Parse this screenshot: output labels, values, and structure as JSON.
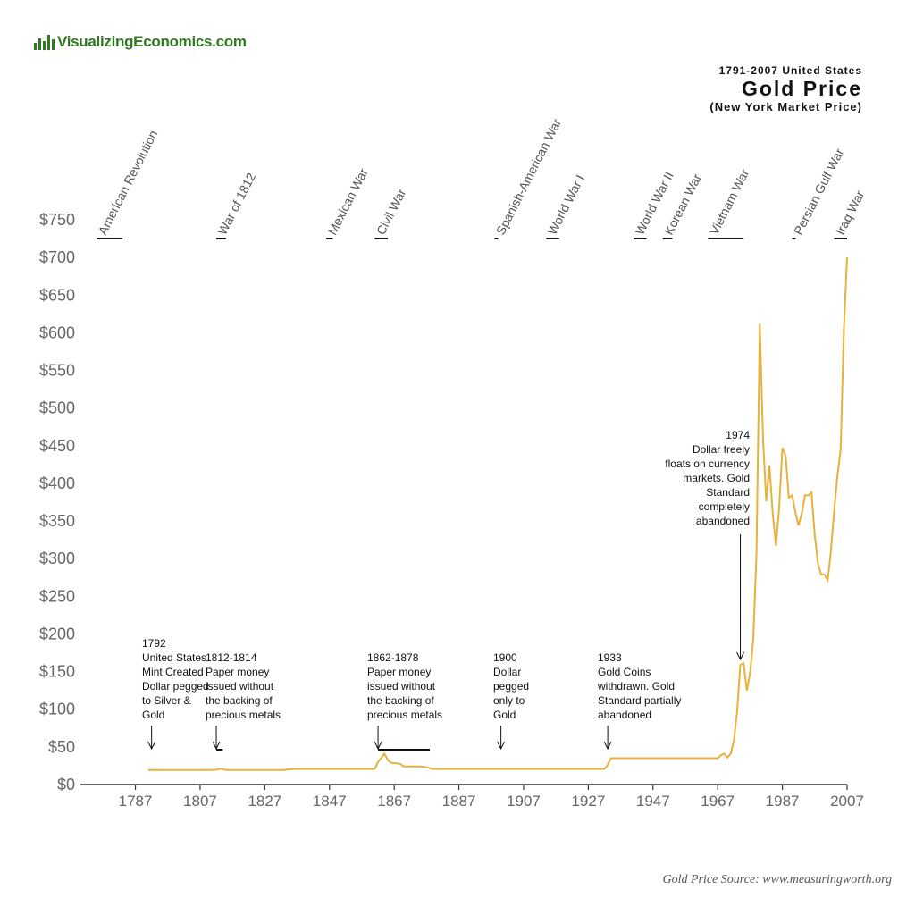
{
  "logo": {
    "text": "VisualizingEconomics.com"
  },
  "title": {
    "top": "1791-2007 United States",
    "main": "Gold Price",
    "sub": "(New York Market Price)"
  },
  "source": "Gold Price Source: www.measuringworth.org",
  "colors": {
    "line": "#e8b13a",
    "axis": "#333333",
    "text": "#666666",
    "logo": "#2f7a1f"
  },
  "chart_data": {
    "type": "line",
    "title": "Gold Price",
    "xlabel": "",
    "ylabel": "",
    "xlim": [
      1770,
      2007
    ],
    "ylim": [
      0,
      750
    ],
    "y_ticks": [
      0,
      50,
      100,
      150,
      200,
      250,
      300,
      350,
      400,
      450,
      500,
      550,
      600,
      650,
      700,
      750
    ],
    "y_tick_labels": [
      "$0",
      "$50",
      "$100",
      "$150",
      "$200",
      "$250",
      "$300",
      "$350",
      "$400",
      "$450",
      "$500",
      "$550",
      "$600",
      "$650",
      "$700",
      "$750"
    ],
    "x_ticks": [
      1787,
      1807,
      1827,
      1847,
      1867,
      1887,
      1907,
      1927,
      1947,
      1967,
      1987,
      2007
    ],
    "x_tick_labels": [
      "1787",
      "1807",
      "1827",
      "1847",
      "1867",
      "1887",
      "1907",
      "1927",
      "1947",
      "1967",
      "1987",
      "2007"
    ],
    "grid": false,
    "series": [
      {
        "points": [
          [
            1791,
            19.4
          ],
          [
            1810,
            19.4
          ],
          [
            1812,
            19.6
          ],
          [
            1813,
            21
          ],
          [
            1815,
            19.4
          ],
          [
            1825,
            19.4
          ],
          [
            1833,
            19.4
          ],
          [
            1835,
            20.5
          ],
          [
            1837,
            20.7
          ],
          [
            1840,
            20.7
          ],
          [
            1860,
            20.7
          ],
          [
            1861,
            21
          ],
          [
            1862,
            30
          ],
          [
            1864,
            41
          ],
          [
            1865,
            33
          ],
          [
            1866,
            29
          ],
          [
            1868,
            28
          ],
          [
            1869,
            27
          ],
          [
            1870,
            24
          ],
          [
            1875,
            24
          ],
          [
            1877,
            23
          ],
          [
            1879,
            20.7
          ],
          [
            1900,
            20.7
          ],
          [
            1932,
            20.7
          ],
          [
            1933,
            26
          ],
          [
            1934,
            35
          ],
          [
            1967,
            35
          ],
          [
            1968,
            39
          ],
          [
            1969,
            41
          ],
          [
            1970,
            36
          ],
          [
            1971,
            41
          ],
          [
            1972,
            58
          ],
          [
            1973,
            97
          ],
          [
            1974,
            159
          ],
          [
            1975,
            161
          ],
          [
            1976,
            125
          ],
          [
            1977,
            148
          ],
          [
            1978,
            193
          ],
          [
            1979,
            307
          ],
          [
            1980,
            612
          ],
          [
            1981,
            460
          ],
          [
            1982,
            376
          ],
          [
            1983,
            424
          ],
          [
            1984,
            361
          ],
          [
            1985,
            317
          ],
          [
            1986,
            368
          ],
          [
            1987,
            447
          ],
          [
            1988,
            437
          ],
          [
            1989,
            381
          ],
          [
            1990,
            384
          ],
          [
            1991,
            362
          ],
          [
            1992,
            344
          ],
          [
            1993,
            360
          ],
          [
            1994,
            384
          ],
          [
            1995,
            384
          ],
          [
            1996,
            388
          ],
          [
            1997,
            331
          ],
          [
            1998,
            294
          ],
          [
            1999,
            279
          ],
          [
            2000,
            279
          ],
          [
            2001,
            271
          ],
          [
            2002,
            310
          ],
          [
            2003,
            363
          ],
          [
            2004,
            409
          ],
          [
            2005,
            445
          ],
          [
            2006,
            604
          ],
          [
            2007,
            700
          ]
        ]
      }
    ],
    "wars": [
      {
        "label": "American Revolution",
        "start": 1775,
        "end": 1783
      },
      {
        "label": "War of 1812",
        "start": 1812,
        "end": 1815
      },
      {
        "label": "Mexican War",
        "start": 1846,
        "end": 1848
      },
      {
        "label": "Civil War",
        "start": 1861,
        "end": 1865
      },
      {
        "label": "Spanish-American War",
        "start": 1898,
        "end": 1898
      },
      {
        "label": "World War I",
        "start": 1914,
        "end": 1918
      },
      {
        "label": "World War II",
        "start": 1941,
        "end": 1945
      },
      {
        "label": "Korean War",
        "start": 1950,
        "end": 1953
      },
      {
        "label": "Vietnam War",
        "start": 1964,
        "end": 1975
      },
      {
        "label": "Persian Gulf War",
        "start": 1990,
        "end": 1991
      },
      {
        "label": "Iraq War",
        "start": 2003,
        "end": 2007
      }
    ],
    "annotations": [
      {
        "lines": [
          "1792",
          "United States",
          "Mint Created",
          "Dollar pegged",
          "to Silver &",
          "Gold"
        ],
        "year": 1792
      },
      {
        "lines": [
          "1812-1814",
          "Paper money",
          "issued without",
          "the backing of",
          "precious metals"
        ],
        "year": 1812,
        "span_end": 1814
      },
      {
        "lines": [
          "1862-1878",
          "Paper money",
          "issued without",
          "the backing of",
          "precious metals"
        ],
        "year": 1862,
        "span_end": 1878
      },
      {
        "lines": [
          "1900",
          "Dollar",
          "pegged",
          "only to",
          "Gold"
        ],
        "year": 1900
      },
      {
        "lines": [
          "1933",
          "Gold Coins",
          "withdrawn. Gold",
          "Standard partially",
          "abandoned"
        ],
        "year": 1933
      },
      {
        "lines": [
          "1974",
          "Dollar freely",
          "floats on currency",
          "markets. Gold",
          "Standard",
          "completely",
          "abandoned"
        ],
        "year": 1974
      }
    ]
  }
}
